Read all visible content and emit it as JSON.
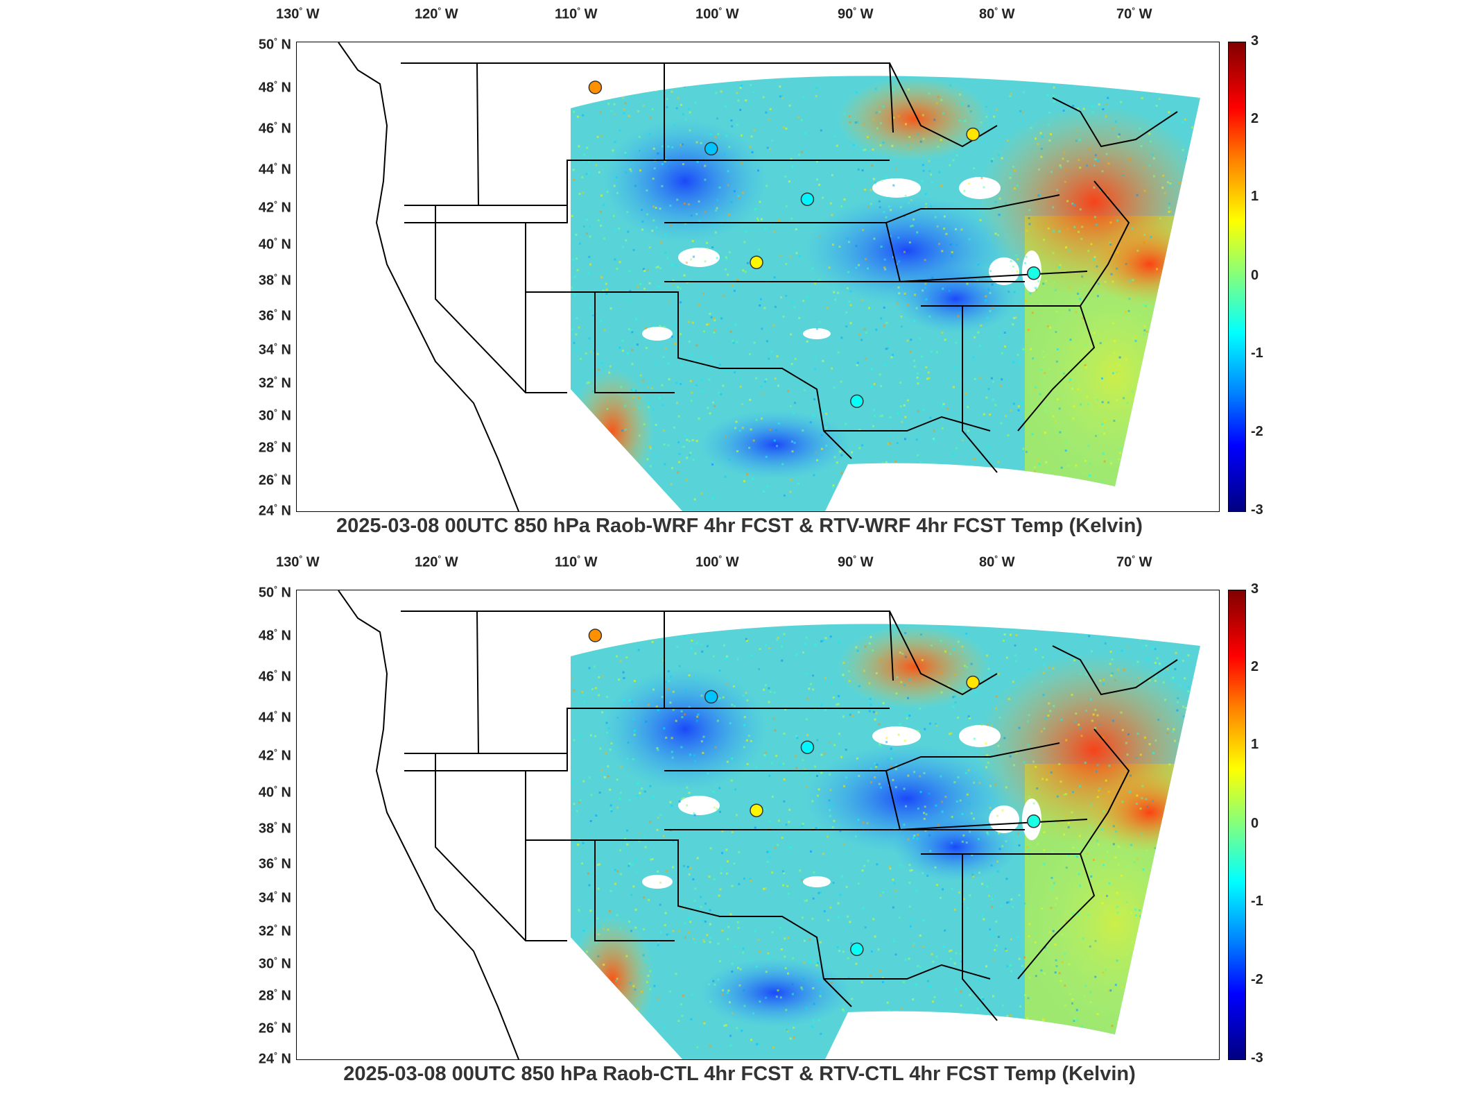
{
  "panels": [
    {
      "title": "2025-03-08 00UTC 850 hPa Raob-WRF 4hr FCST & RTV-WRF 4hr FCST Temp (Kelvin)"
    },
    {
      "title": "2025-03-08 00UTC 850 hPa Raob-CTL 4hr FCST & RTV-CTL 4hr FCST Temp (Kelvin)"
    }
  ],
  "axes": {
    "lon_labels": [
      "130",
      "120",
      "110",
      "100",
      "90",
      "80",
      "70"
    ],
    "lon_suffix": "W",
    "lat_labels": [
      "50",
      "48",
      "46",
      "44",
      "42",
      "40",
      "38",
      "36",
      "34",
      "32",
      "30",
      "28",
      "26",
      "24"
    ],
    "lat_suffix": "N",
    "deg": "°"
  },
  "colorbar": {
    "ticks": [
      "3",
      "2",
      "1",
      "0",
      "-1",
      "-2",
      "-3"
    ],
    "range": [
      -3,
      3
    ],
    "colormap": "jet"
  },
  "colors": {
    "coast": "#000000",
    "field_base": "#5ad6d6",
    "warm": "#ff6a1a",
    "cold": "#1a5fff"
  },
  "raob_stations": [
    {
      "name": "",
      "lon": -111.4,
      "lat": 47.5,
      "value": 1.4
    },
    {
      "name": "",
      "lon": -103.2,
      "lat": 44.1,
      "value": -1.1
    },
    {
      "name": "",
      "lon": -96.4,
      "lat": 41.3,
      "value": -0.8
    },
    {
      "name": "",
      "lon": -100.0,
      "lat": 37.8,
      "value": 0.8
    },
    {
      "name": "",
      "lon": -84.7,
      "lat": 44.9,
      "value": 0.9
    },
    {
      "name": "",
      "lon": -80.4,
      "lat": 37.2,
      "value": -0.6
    },
    {
      "name": "",
      "lon": -92.9,
      "lat": 30.1,
      "value": -0.7
    }
  ]
}
